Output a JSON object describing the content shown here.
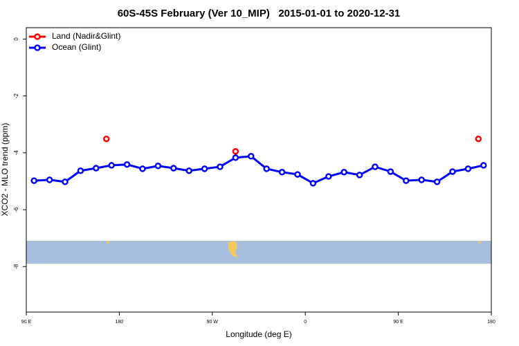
{
  "chart_data": {
    "type": "line",
    "title": "60S-45S February (Ver 10_MIP)   2015-01-01 to 2020-12-31",
    "x_label": "Longitude (deg E)",
    "y_label": "XCO2 - MLO trend (ppm)",
    "xlim": [
      90,
      540
    ],
    "xticks": [
      {
        "value": 90,
        "label": "90 E"
      },
      {
        "value": 180,
        "label": "180"
      },
      {
        "value": 270,
        "label": "90 W"
      },
      {
        "value": 360,
        "label": "0"
      },
      {
        "value": 450,
        "label": "90 E"
      },
      {
        "value": 540,
        "label": "180"
      }
    ],
    "ylim": [
      -9.6,
      0.4
    ],
    "yticks": [
      0,
      -2,
      -4,
      -6,
      -8
    ],
    "legend": "top-left",
    "series": [
      {
        "name": "Land (Nadir&Glint)",
        "color": "#ff0000",
        "line": false,
        "x": [
          167.5,
          292.5,
          527.5
        ],
        "values": [
          -3.51,
          -3.95,
          -3.51
        ]
      },
      {
        "name": "Ocean (Glint)",
        "color": "#0000ff",
        "line": true,
        "x": [
          97.5,
          112.5,
          127.5,
          142.5,
          157.5,
          172.5,
          187.5,
          202.5,
          217.5,
          232.5,
          247.5,
          262.5,
          277.5,
          292.5,
          307.5,
          322.5,
          337.5,
          352.5,
          367.5,
          382.5,
          397.5,
          412.5,
          427.5,
          442.5,
          457.5,
          472.5,
          487.5,
          502.5,
          517.5,
          532.5
        ],
        "values": [
          -4.98,
          -4.95,
          -5.02,
          -4.63,
          -4.54,
          -4.44,
          -4.41,
          -4.56,
          -4.46,
          -4.54,
          -4.63,
          -4.56,
          -4.49,
          -4.17,
          -4.12,
          -4.56,
          -4.68,
          -4.76,
          -5.07,
          -4.83,
          -4.68,
          -4.78,
          -4.49,
          -4.66,
          -4.98,
          -4.95,
          -5.02,
          -4.66,
          -4.56,
          -4.44
        ]
      }
    ]
  }
}
